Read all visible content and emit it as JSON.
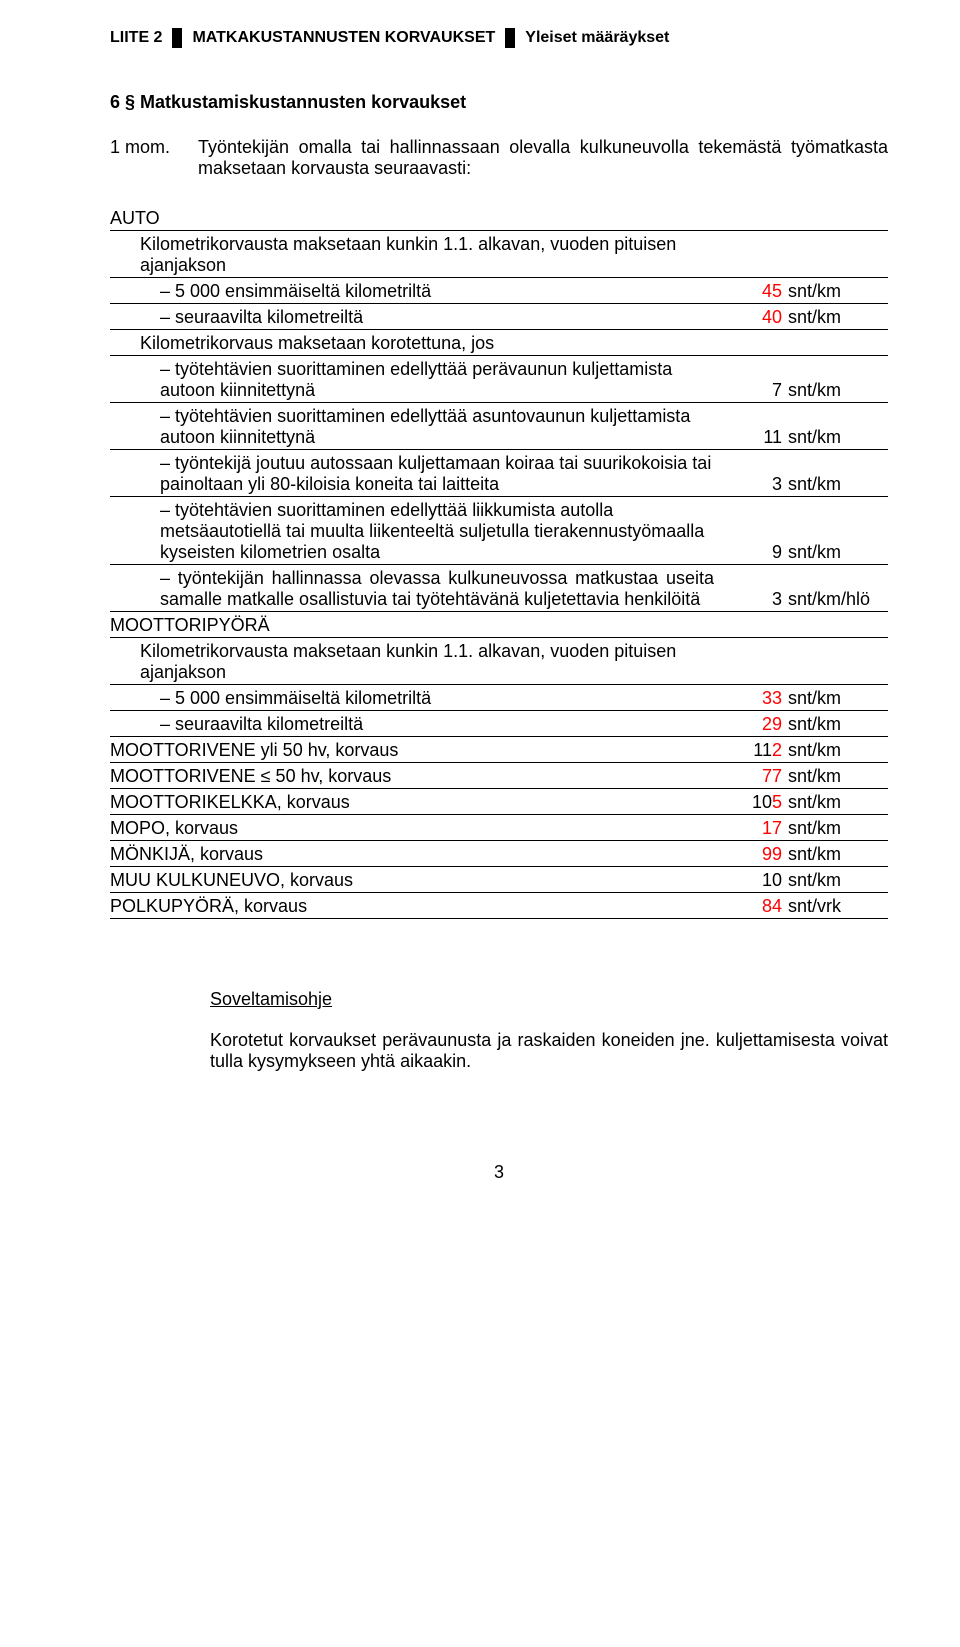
{
  "header": {
    "part1": "LIITE 2",
    "part2": "MATKAKUSTANNUSTEN KORVAUKSET",
    "part3": "Yleiset määräykset"
  },
  "section_heading": "6 § Matkustamiskustannusten korvaukset",
  "mom": {
    "label": "1 mom.",
    "text": "Työntekijän omalla tai hallinnassaan olevalla kulkuneuvolla tekemästä työmatkasta maksetaan korvausta seuraavasti:"
  },
  "rows": [
    {
      "desc": "AUTO",
      "val": "",
      "unit": "",
      "indent": 0,
      "justify": false,
      "val_red": false
    },
    {
      "desc": "Kilometrikorvausta maksetaan kunkin 1.1. alkavan, vuoden pituisen ajanjakson",
      "val": "",
      "unit": "",
      "indent": 1,
      "justify": false,
      "val_red": false
    },
    {
      "desc": "– 5 000 ensimmäiseltä kilometriltä",
      "val": "45",
      "unit": "snt/km",
      "indent": 2,
      "justify": false,
      "val_red": true
    },
    {
      "desc": "– seuraavilta kilometreiltä",
      "val": "40",
      "unit": "snt/km",
      "indent": 2,
      "justify": false,
      "val_red": true
    },
    {
      "desc": "Kilometrikorvaus maksetaan korotettuna, jos",
      "val": "",
      "unit": "",
      "indent": 1,
      "justify": false,
      "val_red": false
    },
    {
      "desc": "– työtehtävien suorittaminen edellyttää perävaunun kuljettamista autoon kiinnitettynä",
      "val": "7",
      "unit": "snt/km",
      "indent": 2,
      "justify": false,
      "val_red": false
    },
    {
      "desc": "– työtehtävien suorittaminen edellyttää asuntovaunun kuljettamista autoon kiinnitettynä",
      "val": "11",
      "unit": "snt/km",
      "indent": 2,
      "justify": false,
      "val_red": false
    },
    {
      "desc": "– työntekijä joutuu autossaan kuljettamaan koiraa tai suurikokoisia tai painoltaan yli 80-kiloisia koneita tai laitteita",
      "val": "3",
      "unit": "snt/km",
      "indent": 2,
      "justify": false,
      "val_red": false
    },
    {
      "desc": "– työtehtävien suorittaminen edellyttää liikkumista autolla metsäautotiellä tai muulta liikenteeltä suljetulla tierakennustyömaalla kyseisten kilometrien osalta",
      "val": "9",
      "unit": "snt/km",
      "indent": 2,
      "justify": false,
      "val_red": false
    },
    {
      "desc": "–  työntekijän hallinnassa olevassa kulkuneuvossa matkustaa useita samalle matkalle osallistuvia tai työtehtävänä kuljetettavia henkilöitä",
      "val": "3",
      "unit": "snt/km/hlö",
      "indent": 2,
      "justify": true,
      "val_red": false
    },
    {
      "desc": "MOOTTORIPYÖRÄ",
      "val": "",
      "unit": "",
      "indent": 0,
      "justify": false,
      "val_red": false
    },
    {
      "desc": "Kilometrikorvausta maksetaan kunkin 1.1. alkavan, vuoden pituisen ajanjakson",
      "val": "",
      "unit": "",
      "indent": 1,
      "justify": false,
      "val_red": false
    },
    {
      "desc": "– 5 000 ensimmäiseltä kilometriltä",
      "val": "33",
      "unit": "snt/km",
      "indent": 2,
      "justify": false,
      "val_red": true
    },
    {
      "desc": "– seuraavilta kilometreiltä",
      "val": "29",
      "unit": "snt/km",
      "indent": 2,
      "justify": false,
      "val_red": true
    },
    {
      "desc": "MOOTTORIVENE yli 50 hv, korvaus",
      "val": "112",
      "unit": "snt/km",
      "indent": 0,
      "justify": false,
      "val_red": true
    },
    {
      "desc": "MOOTTORIVENE ≤ 50 hv, korvaus",
      "val": "77",
      "unit": "snt/km",
      "indent": 0,
      "justify": false,
      "val_red": true
    },
    {
      "desc": "MOOTTORIKELKKA, korvaus",
      "val": "105",
      "unit": "snt/km",
      "indent": 0,
      "justify": false,
      "val_red": true
    },
    {
      "desc": "MOPO, korvaus",
      "val": "17",
      "unit": "snt/km",
      "indent": 0,
      "justify": false,
      "val_red": true
    },
    {
      "desc": "MÖNKIJÄ, korvaus",
      "val": "99",
      "unit": "snt/km",
      "indent": 0,
      "justify": false,
      "val_red": true
    },
    {
      "desc": "MUU KULKUNEUVO, korvaus",
      "val": "10",
      "unit": "snt/km",
      "indent": 0,
      "justify": false,
      "val_red": false
    },
    {
      "desc": "POLKUPYÖRÄ, korvaus",
      "val": "84",
      "unit": "snt/vrk",
      "indent": 0,
      "justify": false,
      "val_red": true
    }
  ],
  "footer": {
    "heading": "Soveltamisohje",
    "text": "Korotetut korvaukset perävaunusta ja raskaiden koneiden jne. kuljettamisesta voivat tulla kysymykseen yhtä aikaakin."
  },
  "page_number": "3"
}
